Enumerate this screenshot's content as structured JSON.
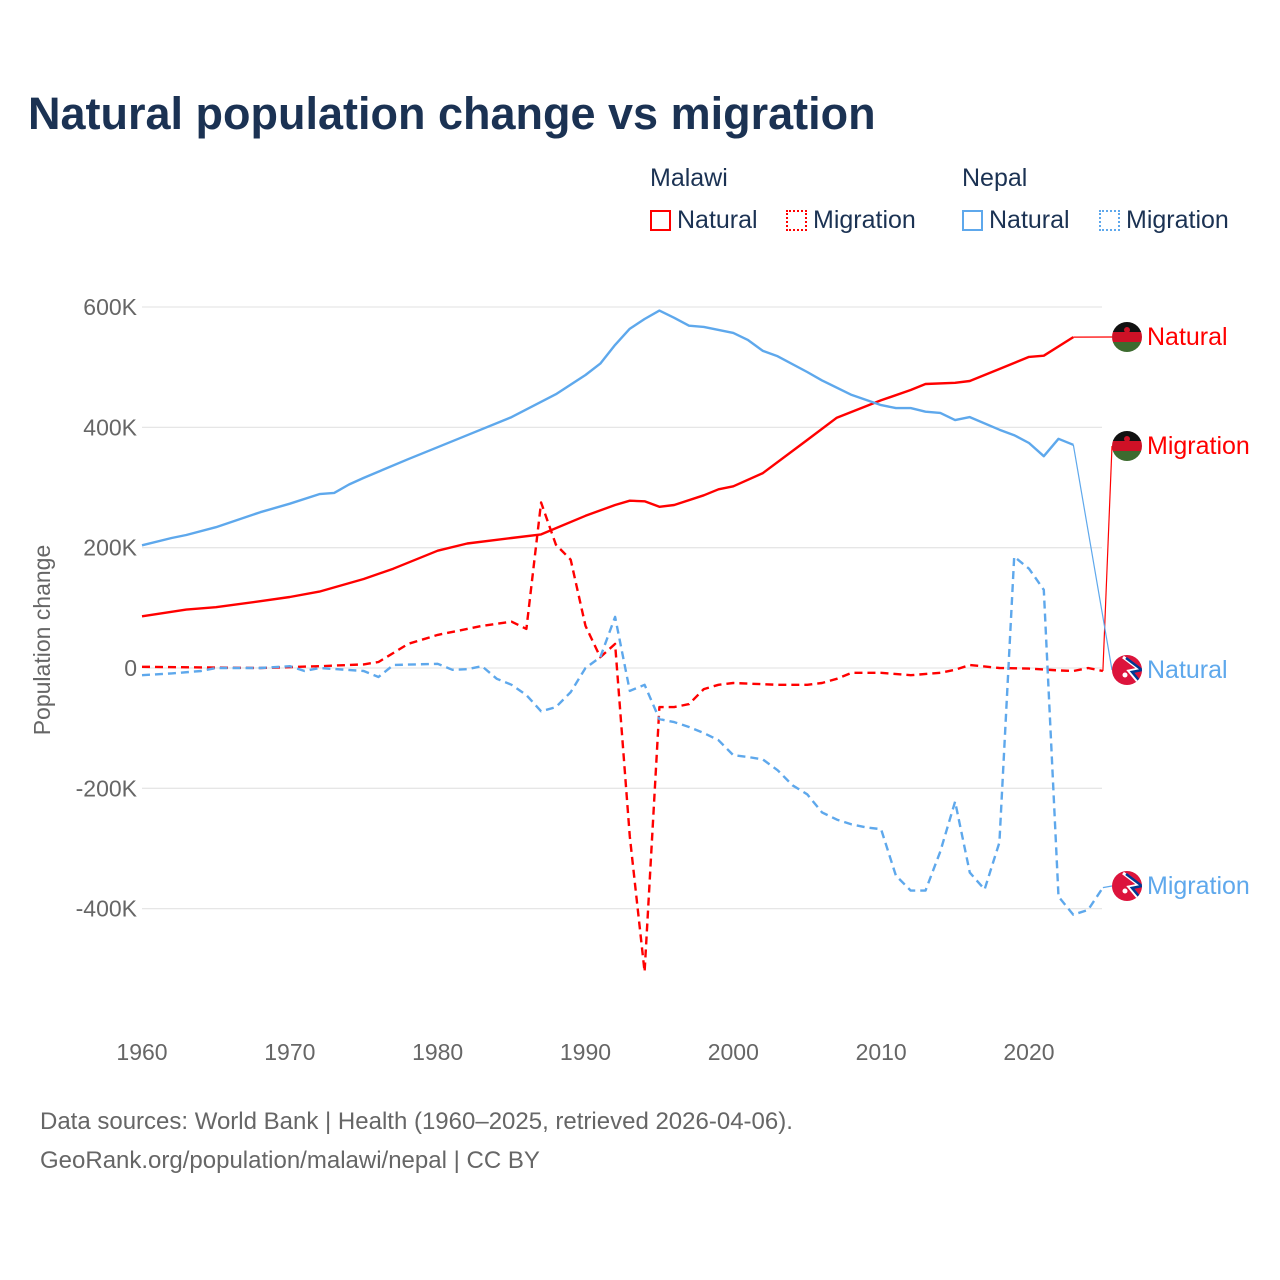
{
  "chart_data": {
    "type": "line",
    "title": "Natural population change vs migration",
    "xlabel": "",
    "ylabel": "Population change",
    "xlim": [
      1960,
      2025
    ],
    "ylim": [
      -500000,
      600000
    ],
    "x_ticks": [
      1960,
      1970,
      1980,
      1990,
      2000,
      2010,
      2020
    ],
    "x_tick_labels": [
      "1960",
      "1970",
      "1980",
      "1990",
      "2000",
      "2010",
      "2020"
    ],
    "y_ticks": [
      600000,
      400000,
      200000,
      0,
      -200000,
      -400000
    ],
    "y_tick_labels": [
      "600K",
      "400K",
      "200K",
      "0",
      "-200K",
      "-400K"
    ],
    "grid": true,
    "legend_placement": "top-right",
    "legend_groups": [
      {
        "name": "Malawi",
        "items": [
          "Natural",
          "Migration"
        ]
      },
      {
        "name": "Nepal",
        "items": [
          "Natural",
          "Migration"
        ]
      }
    ],
    "series": [
      {
        "country": "Malawi",
        "name": "Natural",
        "color": "#ff0000",
        "style": "solid",
        "end_label": "Natural",
        "x": [
          1960,
          1963,
          1965,
          1968,
          1970,
          1972,
          1975,
          1977,
          1980,
          1982,
          1985,
          1987,
          1990,
          1992,
          1993,
          1994,
          1995,
          1996,
          1998,
          1999,
          2000,
          2002,
          2005,
          2007,
          2010,
          2012,
          2013,
          2015,
          2016,
          2018,
          2020,
          2021,
          2023
        ],
        "y": [
          86000,
          97000,
          101000,
          111000,
          118000,
          127000,
          148000,
          165000,
          195000,
          207000,
          216000,
          222000,
          253000,
          271000,
          278000,
          277000,
          268000,
          271000,
          287000,
          297000,
          302000,
          324000,
          379000,
          416000,
          445000,
          462000,
          472000,
          474000,
          477000,
          497000,
          517000,
          519000,
          550000
        ]
      },
      {
        "country": "Malawi",
        "name": "Migration",
        "color": "#ff0000",
        "style": "dashed",
        "end_label": "Migration",
        "x": [
          1960,
          1968,
          1972,
          1975,
          1976,
          1977,
          1978,
          1980,
          1983,
          1985,
          1986,
          1987,
          1988,
          1989,
          1990,
          1991,
          1992,
          1993,
          1994,
          1995,
          1996,
          1997,
          1998,
          1999,
          2000,
          2003,
          2005,
          2006,
          2007,
          2008,
          2010,
          2012,
          2014,
          2015,
          2016,
          2018,
          2020,
          2022,
          2023,
          2024,
          2025
        ],
        "y": [
          2000,
          0,
          3000,
          6000,
          10000,
          25000,
          40000,
          55000,
          70000,
          77000,
          65000,
          275000,
          205000,
          180000,
          70000,
          18000,
          40000,
          -280000,
          -505000,
          -65000,
          -65000,
          -60000,
          -35000,
          -28000,
          -25000,
          -28000,
          -28000,
          -25000,
          -18000,
          -8000,
          -8000,
          -12000,
          -8000,
          -3000,
          5000,
          0,
          -1000,
          -4000,
          -5000,
          0,
          -5000
        ]
      },
      {
        "country": "Nepal",
        "name": "Natural",
        "color": "#5ea8ec",
        "style": "solid",
        "end_label": "Natural",
        "x": [
          1960,
          1962,
          1963,
          1965,
          1968,
          1970,
          1972,
          1973,
          1974,
          1975,
          1978,
          1980,
          1982,
          1985,
          1988,
          1990,
          1991,
          1992,
          1993,
          1994,
          1995,
          1996,
          1997,
          1998,
          2000,
          2001,
          2002,
          2003,
          2005,
          2006,
          2008,
          2010,
          2011,
          2012,
          2013,
          2014,
          2015,
          2016,
          2018,
          2019,
          2020,
          2021,
          2022,
          2023
        ],
        "y": [
          204000,
          216000,
          221000,
          234000,
          259000,
          273000,
          289000,
          291000,
          305000,
          316000,
          347000,
          367000,
          387000,
          417000,
          455000,
          487000,
          506000,
          537000,
          564000,
          580000,
          594000,
          582000,
          569000,
          567000,
          557000,
          545000,
          527000,
          518000,
          492000,
          478000,
          454000,
          437000,
          432000,
          432000,
          426000,
          424000,
          412000,
          417000,
          396000,
          387000,
          374000,
          352000,
          381000,
          371000
        ]
      },
      {
        "country": "Nepal",
        "name": "Migration",
        "color": "#5ea8ec",
        "style": "dashed",
        "end_label": "Migration",
        "x": [
          1960,
          1962,
          1964,
          1965,
          1968,
          1970,
          1971,
          1972,
          1975,
          1976,
          1977,
          1980,
          1981,
          1982,
          1983,
          1984,
          1985,
          1986,
          1987,
          1988,
          1989,
          1990,
          1991,
          1992,
          1993,
          1994,
          1995,
          1996,
          1997,
          1998,
          1999,
          2000,
          2001,
          2002,
          2003,
          2004,
          2005,
          2006,
          2007,
          2008,
          2009,
          2010,
          2011,
          2012,
          2013,
          2014,
          2015,
          2016,
          2017,
          2018,
          2019,
          2020,
          2021,
          2022,
          2023,
          2024,
          2025
        ],
        "y": [
          -12000,
          -9000,
          -5000,
          0,
          0,
          3000,
          -5000,
          0,
          -5000,
          -15000,
          5000,
          7000,
          -3000,
          -2000,
          3000,
          -18000,
          -28000,
          -45000,
          -72000,
          -65000,
          -40000,
          0,
          18000,
          85000,
          -38000,
          -28000,
          -85000,
          -90000,
          -98000,
          -108000,
          -120000,
          -145000,
          -148000,
          -152000,
          -170000,
          -195000,
          -210000,
          -240000,
          -252000,
          -260000,
          -265000,
          -268000,
          -345000,
          -370000,
          -370000,
          -305000,
          -222000,
          -340000,
          -368000,
          -290000,
          185000,
          165000,
          130000,
          -380000,
          -410000,
          -402000,
          -365000
        ]
      }
    ]
  },
  "footer": {
    "line1": "Data sources: World Bank | Health (1960–2025, retrieved 2026-04-06).",
    "line2": "GeoRank.org/population/malawi/nepal | CC BY"
  },
  "colors": {
    "malawi": "#ff0000",
    "nepal": "#5ea8ec",
    "title": "#1b3253",
    "grid": "#e6e6e6"
  }
}
